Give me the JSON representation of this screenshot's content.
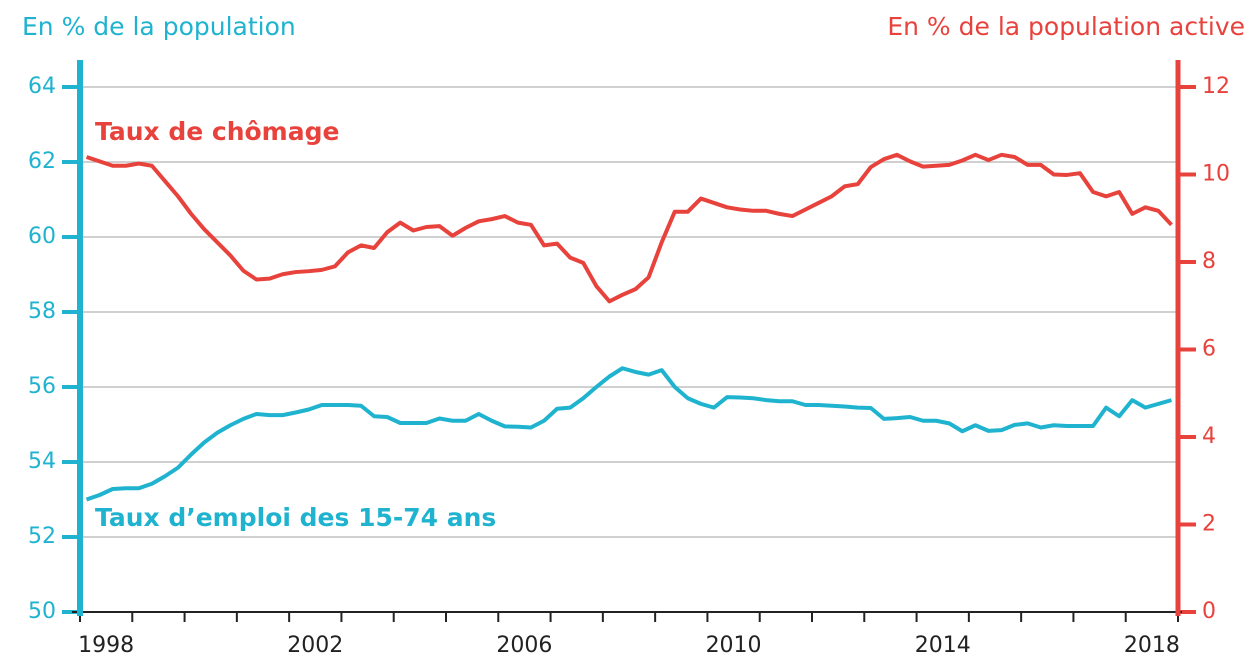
{
  "chart_data": {
    "type": "line",
    "ylabel": "En % de la population",
    "y2label": "En % de la population active",
    "xlim": [
      1998,
      2019
    ],
    "xticks": [
      {
        "value": 1998.5,
        "label": "1998"
      },
      {
        "value": 2002.5,
        "label": "2002"
      },
      {
        "value": 2006.5,
        "label": "2006"
      },
      {
        "value": 2010.5,
        "label": "2010"
      },
      {
        "value": 2014.5,
        "label": "2014"
      },
      {
        "value": 2018.5,
        "label": "2018"
      }
    ],
    "xminorticks": [
      1998,
      1999,
      2000,
      2001,
      2002,
      2003,
      2004,
      2005,
      2006,
      2007,
      2008,
      2009,
      2010,
      2011,
      2012,
      2013,
      2014,
      2015,
      2016,
      2017,
      2018,
      2019
    ],
    "ylim": [
      50,
      64
    ],
    "yticks": [
      50,
      52,
      54,
      56,
      58,
      60,
      62,
      64
    ],
    "y2lim": [
      0,
      12
    ],
    "y2ticks": [
      0,
      2,
      4,
      6,
      8,
      10,
      12
    ],
    "grid": true,
    "x": [
      1998.125,
      1998.375,
      1998.625,
      1998.875,
      1999.125,
      1999.375,
      1999.625,
      1999.875,
      2000.125,
      2000.375,
      2000.625,
      2000.875,
      2001.125,
      2001.375,
      2001.625,
      2001.875,
      2002.125,
      2002.375,
      2002.625,
      2002.875,
      2003.125,
      2003.375,
      2003.625,
      2003.875,
      2004.125,
      2004.375,
      2004.625,
      2004.875,
      2005.125,
      2005.375,
      2005.625,
      2005.875,
      2006.125,
      2006.375,
      2006.625,
      2006.875,
      2007.125,
      2007.375,
      2007.625,
      2007.875,
      2008.125,
      2008.375,
      2008.625,
      2008.875,
      2009.125,
      2009.375,
      2009.625,
      2009.875,
      2010.125,
      2010.375,
      2010.625,
      2010.875,
      2011.125,
      2011.375,
      2011.625,
      2011.875,
      2012.125,
      2012.375,
      2012.625,
      2012.875,
      2013.125,
      2013.375,
      2013.625,
      2013.875,
      2014.125,
      2014.375,
      2014.625,
      2014.875,
      2015.125,
      2015.375,
      2015.625,
      2015.875,
      2016.125,
      2016.375,
      2016.625,
      2016.875,
      2017.125,
      2017.375,
      2017.625,
      2017.875,
      2018.125,
      2018.375,
      2018.625,
      2018.875
    ],
    "series": [
      {
        "name": "Taux de chômage",
        "color": "#e8423c",
        "axis": "y2",
        "values": [
          10.4,
          10.3,
          10.2,
          10.2,
          10.25,
          10.2,
          9.85,
          9.5,
          9.1,
          8.75,
          8.45,
          8.15,
          7.8,
          7.6,
          7.62,
          7.72,
          7.77,
          7.79,
          7.82,
          7.9,
          8.22,
          8.38,
          8.32,
          8.68,
          8.9,
          8.72,
          8.8,
          8.82,
          8.6,
          8.78,
          8.93,
          8.98,
          9.05,
          8.9,
          8.85,
          8.38,
          8.42,
          8.1,
          7.98,
          7.45,
          7.1,
          7.25,
          7.38,
          7.65,
          8.45,
          9.15,
          9.15,
          9.45,
          9.35,
          9.25,
          9.2,
          9.17,
          9.17,
          9.1,
          9.05,
          9.2,
          9.35,
          9.5,
          9.73,
          9.78,
          10.17,
          10.35,
          10.45,
          10.3,
          10.18,
          10.2,
          10.22,
          10.32,
          10.45,
          10.33,
          10.45,
          10.4,
          10.22,
          10.22,
          10.0,
          9.99,
          10.03,
          9.6,
          9.5,
          9.6,
          9.1,
          9.25,
          9.17,
          8.85
        ]
      },
      {
        "name": "Taux d’emploi des 15-74 ans",
        "color": "#1fb3cf",
        "axis": "y",
        "values": [
          53.0,
          53.12,
          53.28,
          53.3,
          53.3,
          53.42,
          53.62,
          53.85,
          54.2,
          54.52,
          54.78,
          54.98,
          55.15,
          55.28,
          55.25,
          55.25,
          55.32,
          55.4,
          55.52,
          55.52,
          55.52,
          55.5,
          55.22,
          55.2,
          55.04,
          55.04,
          55.04,
          55.16,
          55.1,
          55.1,
          55.28,
          55.1,
          54.95,
          54.94,
          54.92,
          55.1,
          55.42,
          55.45,
          55.7,
          56.0,
          56.28,
          56.5,
          56.4,
          56.33,
          56.45,
          56.0,
          55.7,
          55.55,
          55.45,
          55.73,
          55.72,
          55.7,
          55.65,
          55.62,
          55.62,
          55.52,
          55.52,
          55.5,
          55.48,
          55.45,
          55.44,
          55.15,
          55.17,
          55.2,
          55.1,
          55.1,
          55.03,
          54.82,
          54.98,
          54.83,
          54.85,
          54.99,
          55.03,
          54.92,
          54.98,
          54.96,
          54.96,
          54.96,
          55.45,
          55.22,
          55.65,
          55.45,
          55.55,
          55.65
        ]
      }
    ]
  }
}
